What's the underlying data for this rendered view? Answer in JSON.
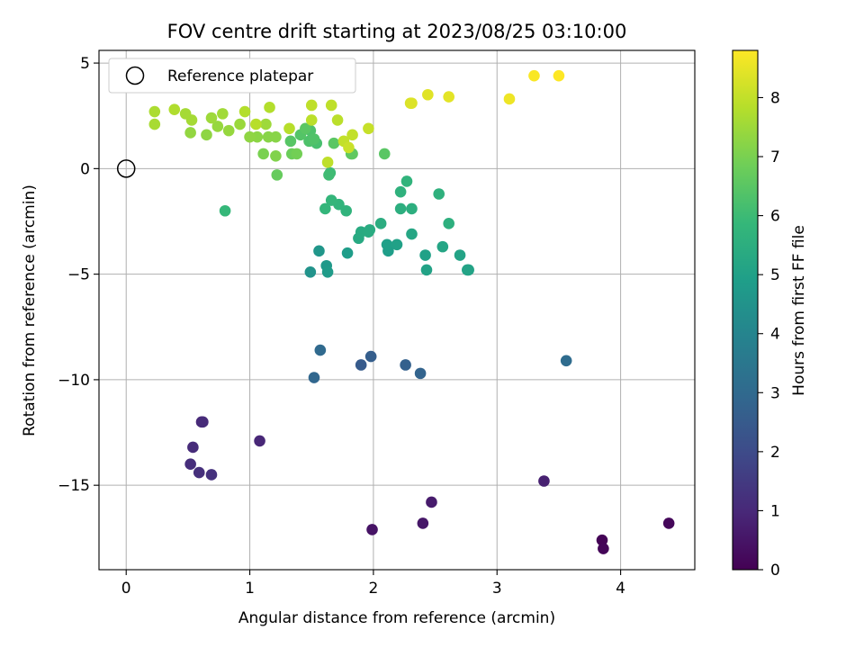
{
  "chart_data": {
    "type": "scatter",
    "title": "FOV centre drift starting at 2023/08/25 03:10:00",
    "xlabel": "Angular distance from reference (arcmin)",
    "ylabel": "Rotation from reference (arcmin)",
    "xlim": [
      -0.22,
      4.6
    ],
    "ylim": [
      -19.0,
      5.6
    ],
    "xticks": [
      0,
      1,
      2,
      3,
      4
    ],
    "xtick_labels": [
      "0",
      "1",
      "2",
      "3",
      "4"
    ],
    "yticks": [
      5,
      0,
      -5,
      -10,
      -15
    ],
    "ytick_labels": [
      "5",
      "0",
      "−5",
      "−10",
      "−15"
    ],
    "grid": true,
    "legend": {
      "placement": "upper-left",
      "entries": [
        {
          "label": "Reference platepar",
          "marker": "open-circle"
        }
      ]
    },
    "reference_point": {
      "x": 0,
      "y": 0
    },
    "colorbar": {
      "label": "Hours from first FF file",
      "colormap": "viridis",
      "range": [
        0,
        8.8
      ],
      "ticks": [
        0,
        1,
        2,
        3,
        4,
        5,
        6,
        7,
        8
      ],
      "tick_labels": [
        "0",
        "1",
        "2",
        "3",
        "4",
        "5",
        "6",
        "7",
        "8"
      ]
    },
    "series": [
      {
        "points": [
          {
            "x": 3.85,
            "y": -17.6,
            "h": 0.05
          },
          {
            "x": 3.86,
            "y": -18.0,
            "h": 0.1
          },
          {
            "x": 4.39,
            "y": -16.8,
            "h": 0.15
          },
          {
            "x": 1.99,
            "y": -17.1,
            "h": 0.45
          },
          {
            "x": 2.4,
            "y": -16.8,
            "h": 0.55
          },
          {
            "x": 2.47,
            "y": -15.8,
            "h": 0.65
          },
          {
            "x": 3.38,
            "y": -14.8,
            "h": 0.8
          },
          {
            "x": 1.08,
            "y": -12.9,
            "h": 0.95
          },
          {
            "x": 0.61,
            "y": -12.0,
            "h": 1.0
          },
          {
            "x": 0.62,
            "y": -12.0,
            "h": 1.05
          },
          {
            "x": 0.54,
            "y": -13.2,
            "h": 1.1
          },
          {
            "x": 0.52,
            "y": -14.0,
            "h": 1.15
          },
          {
            "x": 0.59,
            "y": -14.4,
            "h": 1.2
          },
          {
            "x": 0.69,
            "y": -14.5,
            "h": 1.25
          },
          {
            "x": 1.9,
            "y": -9.3,
            "h": 2.5
          },
          {
            "x": 1.98,
            "y": -8.9,
            "h": 2.6
          },
          {
            "x": 2.26,
            "y": -9.3,
            "h": 2.7
          },
          {
            "x": 2.38,
            "y": -9.7,
            "h": 2.8
          },
          {
            "x": 1.52,
            "y": -9.9,
            "h": 2.9
          },
          {
            "x": 1.57,
            "y": -8.6,
            "h": 3.0
          },
          {
            "x": 3.56,
            "y": -9.1,
            "h": 3.1
          },
          {
            "x": 1.49,
            "y": -4.9,
            "h": 4.5
          },
          {
            "x": 1.56,
            "y": -3.9,
            "h": 4.6
          },
          {
            "x": 1.62,
            "y": -4.6,
            "h": 4.7
          },
          {
            "x": 1.63,
            "y": -4.9,
            "h": 4.8
          },
          {
            "x": 1.79,
            "y": -4.0,
            "h": 4.85
          },
          {
            "x": 2.12,
            "y": -3.9,
            "h": 4.9
          },
          {
            "x": 2.11,
            "y": -3.6,
            "h": 4.95
          },
          {
            "x": 2.19,
            "y": -3.6,
            "h": 5.0
          },
          {
            "x": 2.42,
            "y": -4.1,
            "h": 5.0
          },
          {
            "x": 2.43,
            "y": -4.8,
            "h": 5.05
          },
          {
            "x": 2.7,
            "y": -4.1,
            "h": 5.1
          },
          {
            "x": 2.77,
            "y": -4.8,
            "h": 5.05
          },
          {
            "x": 2.76,
            "y": -4.8,
            "h": 5.1
          },
          {
            "x": 2.56,
            "y": -3.7,
            "h": 5.15
          },
          {
            "x": 2.31,
            "y": -3.1,
            "h": 5.2
          },
          {
            "x": 1.88,
            "y": -3.3,
            "h": 5.3
          },
          {
            "x": 1.9,
            "y": -3.0,
            "h": 5.35
          },
          {
            "x": 1.97,
            "y": -2.9,
            "h": 5.4
          },
          {
            "x": 1.96,
            "y": -3.0,
            "h": 5.4
          },
          {
            "x": 2.06,
            "y": -2.6,
            "h": 5.45
          },
          {
            "x": 2.22,
            "y": -1.9,
            "h": 5.5
          },
          {
            "x": 2.31,
            "y": -1.9,
            "h": 5.5
          },
          {
            "x": 2.61,
            "y": -2.6,
            "h": 5.55
          },
          {
            "x": 2.53,
            "y": -1.2,
            "h": 5.6
          },
          {
            "x": 2.22,
            "y": -1.1,
            "h": 5.65
          },
          {
            "x": 2.27,
            "y": -0.6,
            "h": 5.7
          },
          {
            "x": 1.78,
            "y": -2.0,
            "h": 5.7
          },
          {
            "x": 1.72,
            "y": -1.7,
            "h": 5.75
          },
          {
            "x": 1.66,
            "y": -1.5,
            "h": 5.8
          },
          {
            "x": 1.61,
            "y": -1.9,
            "h": 5.8
          },
          {
            "x": 0.8,
            "y": -2.0,
            "h": 5.85
          },
          {
            "x": 1.65,
            "y": -0.2,
            "h": 6.0
          },
          {
            "x": 1.64,
            "y": -0.3,
            "h": 6.05
          },
          {
            "x": 1.54,
            "y": 1.2,
            "h": 6.2
          },
          {
            "x": 1.49,
            "y": 1.8,
            "h": 6.3
          },
          {
            "x": 1.48,
            "y": 1.3,
            "h": 6.3
          },
          {
            "x": 1.52,
            "y": 1.4,
            "h": 6.35
          },
          {
            "x": 1.41,
            "y": 1.6,
            "h": 6.4
          },
          {
            "x": 1.33,
            "y": 1.3,
            "h": 6.45
          },
          {
            "x": 1.45,
            "y": 1.9,
            "h": 6.5
          },
          {
            "x": 1.68,
            "y": 1.2,
            "h": 6.5
          },
          {
            "x": 2.09,
            "y": 0.7,
            "h": 6.5
          },
          {
            "x": 1.82,
            "y": 0.7,
            "h": 6.55
          },
          {
            "x": 1.83,
            "y": 0.7,
            "h": 6.6
          },
          {
            "x": 1.22,
            "y": -0.3,
            "h": 6.7
          },
          {
            "x": 1.34,
            "y": 0.7,
            "h": 6.8
          },
          {
            "x": 1.38,
            "y": 0.7,
            "h": 6.9
          },
          {
            "x": 1.11,
            "y": 0.7,
            "h": 7.0
          },
          {
            "x": 1.21,
            "y": 0.6,
            "h": 7.1
          },
          {
            "x": 1.21,
            "y": 1.5,
            "h": 7.2
          },
          {
            "x": 1.15,
            "y": 1.5,
            "h": 7.2
          },
          {
            "x": 1.06,
            "y": 1.5,
            "h": 7.25
          },
          {
            "x": 1.0,
            "y": 1.5,
            "h": 7.3
          },
          {
            "x": 0.65,
            "y": 1.6,
            "h": 7.3
          },
          {
            "x": 0.52,
            "y": 1.7,
            "h": 7.35
          },
          {
            "x": 0.74,
            "y": 2.0,
            "h": 7.4
          },
          {
            "x": 0.83,
            "y": 1.8,
            "h": 7.4
          },
          {
            "x": 0.92,
            "y": 2.1,
            "h": 7.45
          },
          {
            "x": 1.13,
            "y": 2.1,
            "h": 7.5
          },
          {
            "x": 0.69,
            "y": 2.4,
            "h": 7.5
          },
          {
            "x": 0.78,
            "y": 2.6,
            "h": 7.55
          },
          {
            "x": 0.53,
            "y": 2.3,
            "h": 7.6
          },
          {
            "x": 0.48,
            "y": 2.6,
            "h": 7.6
          },
          {
            "x": 0.23,
            "y": 2.1,
            "h": 7.65
          },
          {
            "x": 0.23,
            "y": 2.7,
            "h": 7.7
          },
          {
            "x": 0.39,
            "y": 2.8,
            "h": 7.75
          },
          {
            "x": 0.96,
            "y": 2.7,
            "h": 7.8
          },
          {
            "x": 1.16,
            "y": 2.9,
            "h": 7.8
          },
          {
            "x": 1.05,
            "y": 2.1,
            "h": 7.85
          },
          {
            "x": 1.32,
            "y": 1.9,
            "h": 7.85
          },
          {
            "x": 1.5,
            "y": 2.3,
            "h": 7.9
          },
          {
            "x": 1.71,
            "y": 2.3,
            "h": 7.9
          },
          {
            "x": 1.5,
            "y": 3.0,
            "h": 7.95
          },
          {
            "x": 1.66,
            "y": 3.0,
            "h": 7.95
          },
          {
            "x": 1.63,
            "y": 0.3,
            "h": 7.95
          },
          {
            "x": 1.76,
            "y": 1.3,
            "h": 8.0
          },
          {
            "x": 1.83,
            "y": 1.6,
            "h": 8.0
          },
          {
            "x": 1.96,
            "y": 1.9,
            "h": 8.05
          },
          {
            "x": 1.8,
            "y": 1.0,
            "h": 8.1
          },
          {
            "x": 2.3,
            "y": 3.1,
            "h": 8.3
          },
          {
            "x": 2.31,
            "y": 3.1,
            "h": 8.35
          },
          {
            "x": 2.44,
            "y": 3.5,
            "h": 8.4
          },
          {
            "x": 2.61,
            "y": 3.4,
            "h": 8.45
          },
          {
            "x": 3.1,
            "y": 3.3,
            "h": 8.6
          },
          {
            "x": 3.3,
            "y": 4.4,
            "h": 8.75
          },
          {
            "x": 3.5,
            "y": 4.4,
            "h": 8.8
          }
        ]
      }
    ]
  }
}
